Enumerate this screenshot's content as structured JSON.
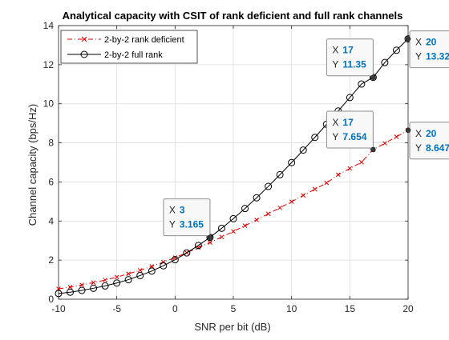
{
  "chart_data": {
    "type": "line",
    "title": "Analytical capacity with CSIT of rank deficient and full rank channels",
    "xlabel": "SNR per bit (dB)",
    "ylabel": "Channel capacity (bps/Hz)",
    "xlim": [
      -10,
      20
    ],
    "ylim": [
      0,
      14
    ],
    "xticks": [
      -10,
      -5,
      0,
      5,
      10,
      15,
      20
    ],
    "yticks": [
      0,
      2,
      4,
      6,
      8,
      10,
      12,
      14
    ],
    "grid": true,
    "legend_position": "top-left",
    "x": [
      -10,
      -9,
      -8,
      -7,
      -6,
      -5,
      -4,
      -3,
      -2,
      -1,
      0,
      1,
      2,
      3,
      4,
      5,
      6,
      7,
      8,
      9,
      10,
      11,
      12,
      13,
      14,
      15,
      16,
      17,
      18,
      19,
      20
    ],
    "series": [
      {
        "name": "2-by-2 rank deficient",
        "color": "#e00000",
        "line_style": "dashdot",
        "marker": "x",
        "values": [
          0.53,
          0.62,
          0.73,
          0.85,
          0.98,
          1.13,
          1.3,
          1.48,
          1.68,
          1.9,
          2.13,
          2.38,
          2.64,
          2.9,
          3.18,
          3.47,
          3.76,
          4.06,
          4.37,
          4.68,
          4.99,
          5.31,
          5.63,
          5.95,
          6.37,
          6.69,
          7.01,
          7.654,
          7.98,
          8.31,
          8.647
        ]
      },
      {
        "name": "2-by-2 full rank",
        "color": "#000000",
        "line_style": "solid",
        "marker": "o",
        "values": [
          0.29,
          0.36,
          0.45,
          0.56,
          0.68,
          0.83,
          1.0,
          1.21,
          1.44,
          1.71,
          2.02,
          2.37,
          2.75,
          3.165,
          3.63,
          4.12,
          4.64,
          5.19,
          5.77,
          6.37,
          6.99,
          7.63,
          8.28,
          8.95,
          9.63,
          10.32,
          11.01,
          11.35,
          12.11,
          12.74,
          13.32
        ]
      }
    ],
    "datatips": [
      {
        "x_label": "X",
        "y_label": "Y",
        "x": "3",
        "y": "3.165",
        "series": 1,
        "index": 13
      },
      {
        "x_label": "X",
        "y_label": "Y",
        "x": "17",
        "y": "11.35",
        "series": 1,
        "index": 27
      },
      {
        "x_label": "X",
        "y_label": "Y",
        "x": "20",
        "y": "13.32",
        "series": 1,
        "index": 30
      },
      {
        "x_label": "X",
        "y_label": "Y",
        "x": "17",
        "y": "7.654",
        "series": 0,
        "index": 27
      },
      {
        "x_label": "X",
        "y_label": "Y",
        "x": "20",
        "y": "8.647",
        "series": 0,
        "index": 30
      }
    ],
    "datatip_value_color": "#0072bd"
  }
}
